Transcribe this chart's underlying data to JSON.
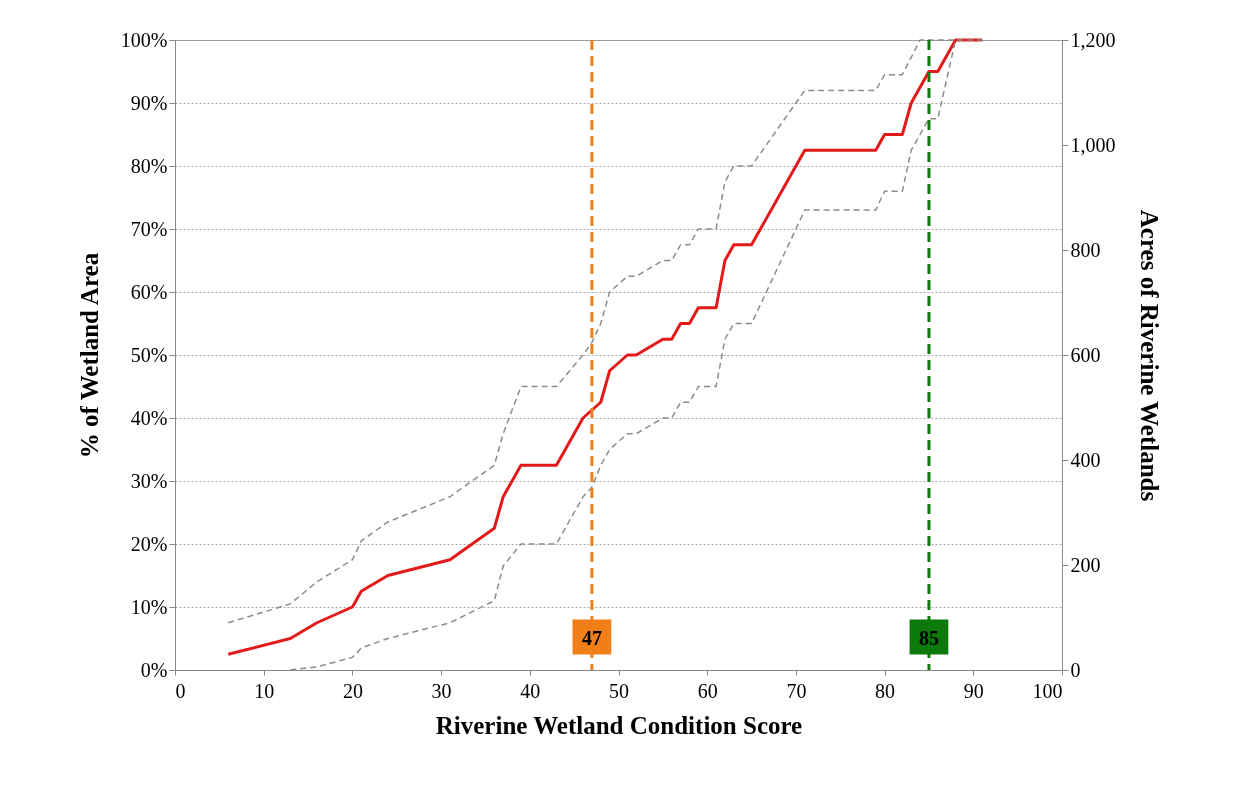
{
  "chart_data": {
    "type": "line",
    "xlabel": "Riverine Wetland Condition Score",
    "ylabel": "% of Wetland Area",
    "y2label": "Acres of Riverine Wetlands",
    "xlim": [
      0,
      100
    ],
    "xticks": [
      0,
      10,
      20,
      30,
      40,
      50,
      60,
      70,
      80,
      90,
      100
    ],
    "ylim": [
      0,
      100
    ],
    "yticks": [
      {
        "value": 0,
        "label": "0%"
      },
      {
        "value": 10,
        "label": "10%"
      },
      {
        "value": 20,
        "label": "20%"
      },
      {
        "value": 30,
        "label": "30%"
      },
      {
        "value": 40,
        "label": "40%"
      },
      {
        "value": 50,
        "label": "50%"
      },
      {
        "value": 60,
        "label": "60%"
      },
      {
        "value": 70,
        "label": "70%"
      },
      {
        "value": 80,
        "label": "80%"
      },
      {
        "value": 90,
        "label": "90%"
      },
      {
        "value": 100,
        "label": "100%"
      }
    ],
    "y2lim": [
      0,
      1200
    ],
    "y2ticks": [
      0,
      200,
      400,
      600,
      800,
      {
        "value": 1000,
        "label": "1,000"
      },
      {
        "value": 1200,
        "label": "1,200"
      }
    ],
    "grid": "y",
    "marker": "none",
    "series": [
      {
        "color": "#e41a1a",
        "line_style": "solid",
        "x": [
          6,
          13,
          16,
          20,
          21,
          24,
          31,
          36,
          37,
          39,
          43,
          46,
          48,
          49,
          51,
          52,
          55,
          56,
          57,
          58,
          59,
          61,
          62,
          63,
          65,
          71,
          79,
          80,
          82,
          83,
          85,
          86,
          88,
          91
        ],
        "values": [
          2.5,
          5,
          7.5,
          10,
          12.5,
          15,
          17.5,
          22.5,
          27.5,
          32.5,
          32.5,
          40,
          42.5,
          47.5,
          50,
          50,
          52.5,
          52.5,
          55,
          55,
          57.5,
          57.5,
          65,
          67.5,
          67.5,
          82.5,
          82.5,
          85,
          85,
          90,
          95,
          95,
          100,
          100
        ]
      },
      {
        "color": "#8c8c8c",
        "line_style": "dashed",
        "x": [
          6,
          13,
          16,
          20,
          21,
          24,
          31,
          36,
          37,
          39,
          43,
          46,
          47,
          48,
          49,
          51,
          52,
          55,
          56,
          57,
          58,
          59,
          61,
          62,
          63,
          65,
          71,
          79,
          80,
          82,
          84,
          88
        ],
        "values": [
          7.5,
          10.5,
          14,
          17.5,
          20.5,
          23.5,
          27.5,
          32.5,
          37.5,
          45,
          45,
          50,
          52,
          55,
          60,
          62.5,
          62.5,
          65,
          65,
          67.5,
          67.5,
          70,
          70,
          77.5,
          80,
          80,
          92,
          92,
          94.5,
          94.5,
          100,
          100
        ]
      },
      {
        "color": "#8c8c8c",
        "line_style": "dashed",
        "x": [
          13,
          16,
          20,
          21,
          24,
          31,
          36,
          37,
          39,
          43,
          46,
          47,
          48,
          49,
          51,
          52,
          55,
          56,
          57,
          58,
          59,
          61,
          62,
          63,
          65,
          71,
          79,
          80,
          82,
          83,
          85,
          86,
          88,
          91
        ],
        "values": [
          0,
          0.5,
          2,
          3.5,
          5,
          7.5,
          11,
          16.5,
          20,
          20,
          27.5,
          29,
          32.5,
          35,
          37.5,
          37.5,
          40,
          40,
          42.5,
          42.5,
          45,
          45,
          52.5,
          55,
          55,
          73,
          73,
          76,
          76,
          82.5,
          87.5,
          87.5,
          100,
          100
        ]
      }
    ],
    "ref_lines": [
      {
        "axis": "x",
        "value": 47,
        "label": "47",
        "color": "#f07f1a",
        "line_style": "dashed"
      },
      {
        "axis": "x",
        "value": 85,
        "label": "85",
        "color": "#0b7a0b",
        "line_style": "dashed"
      }
    ]
  }
}
